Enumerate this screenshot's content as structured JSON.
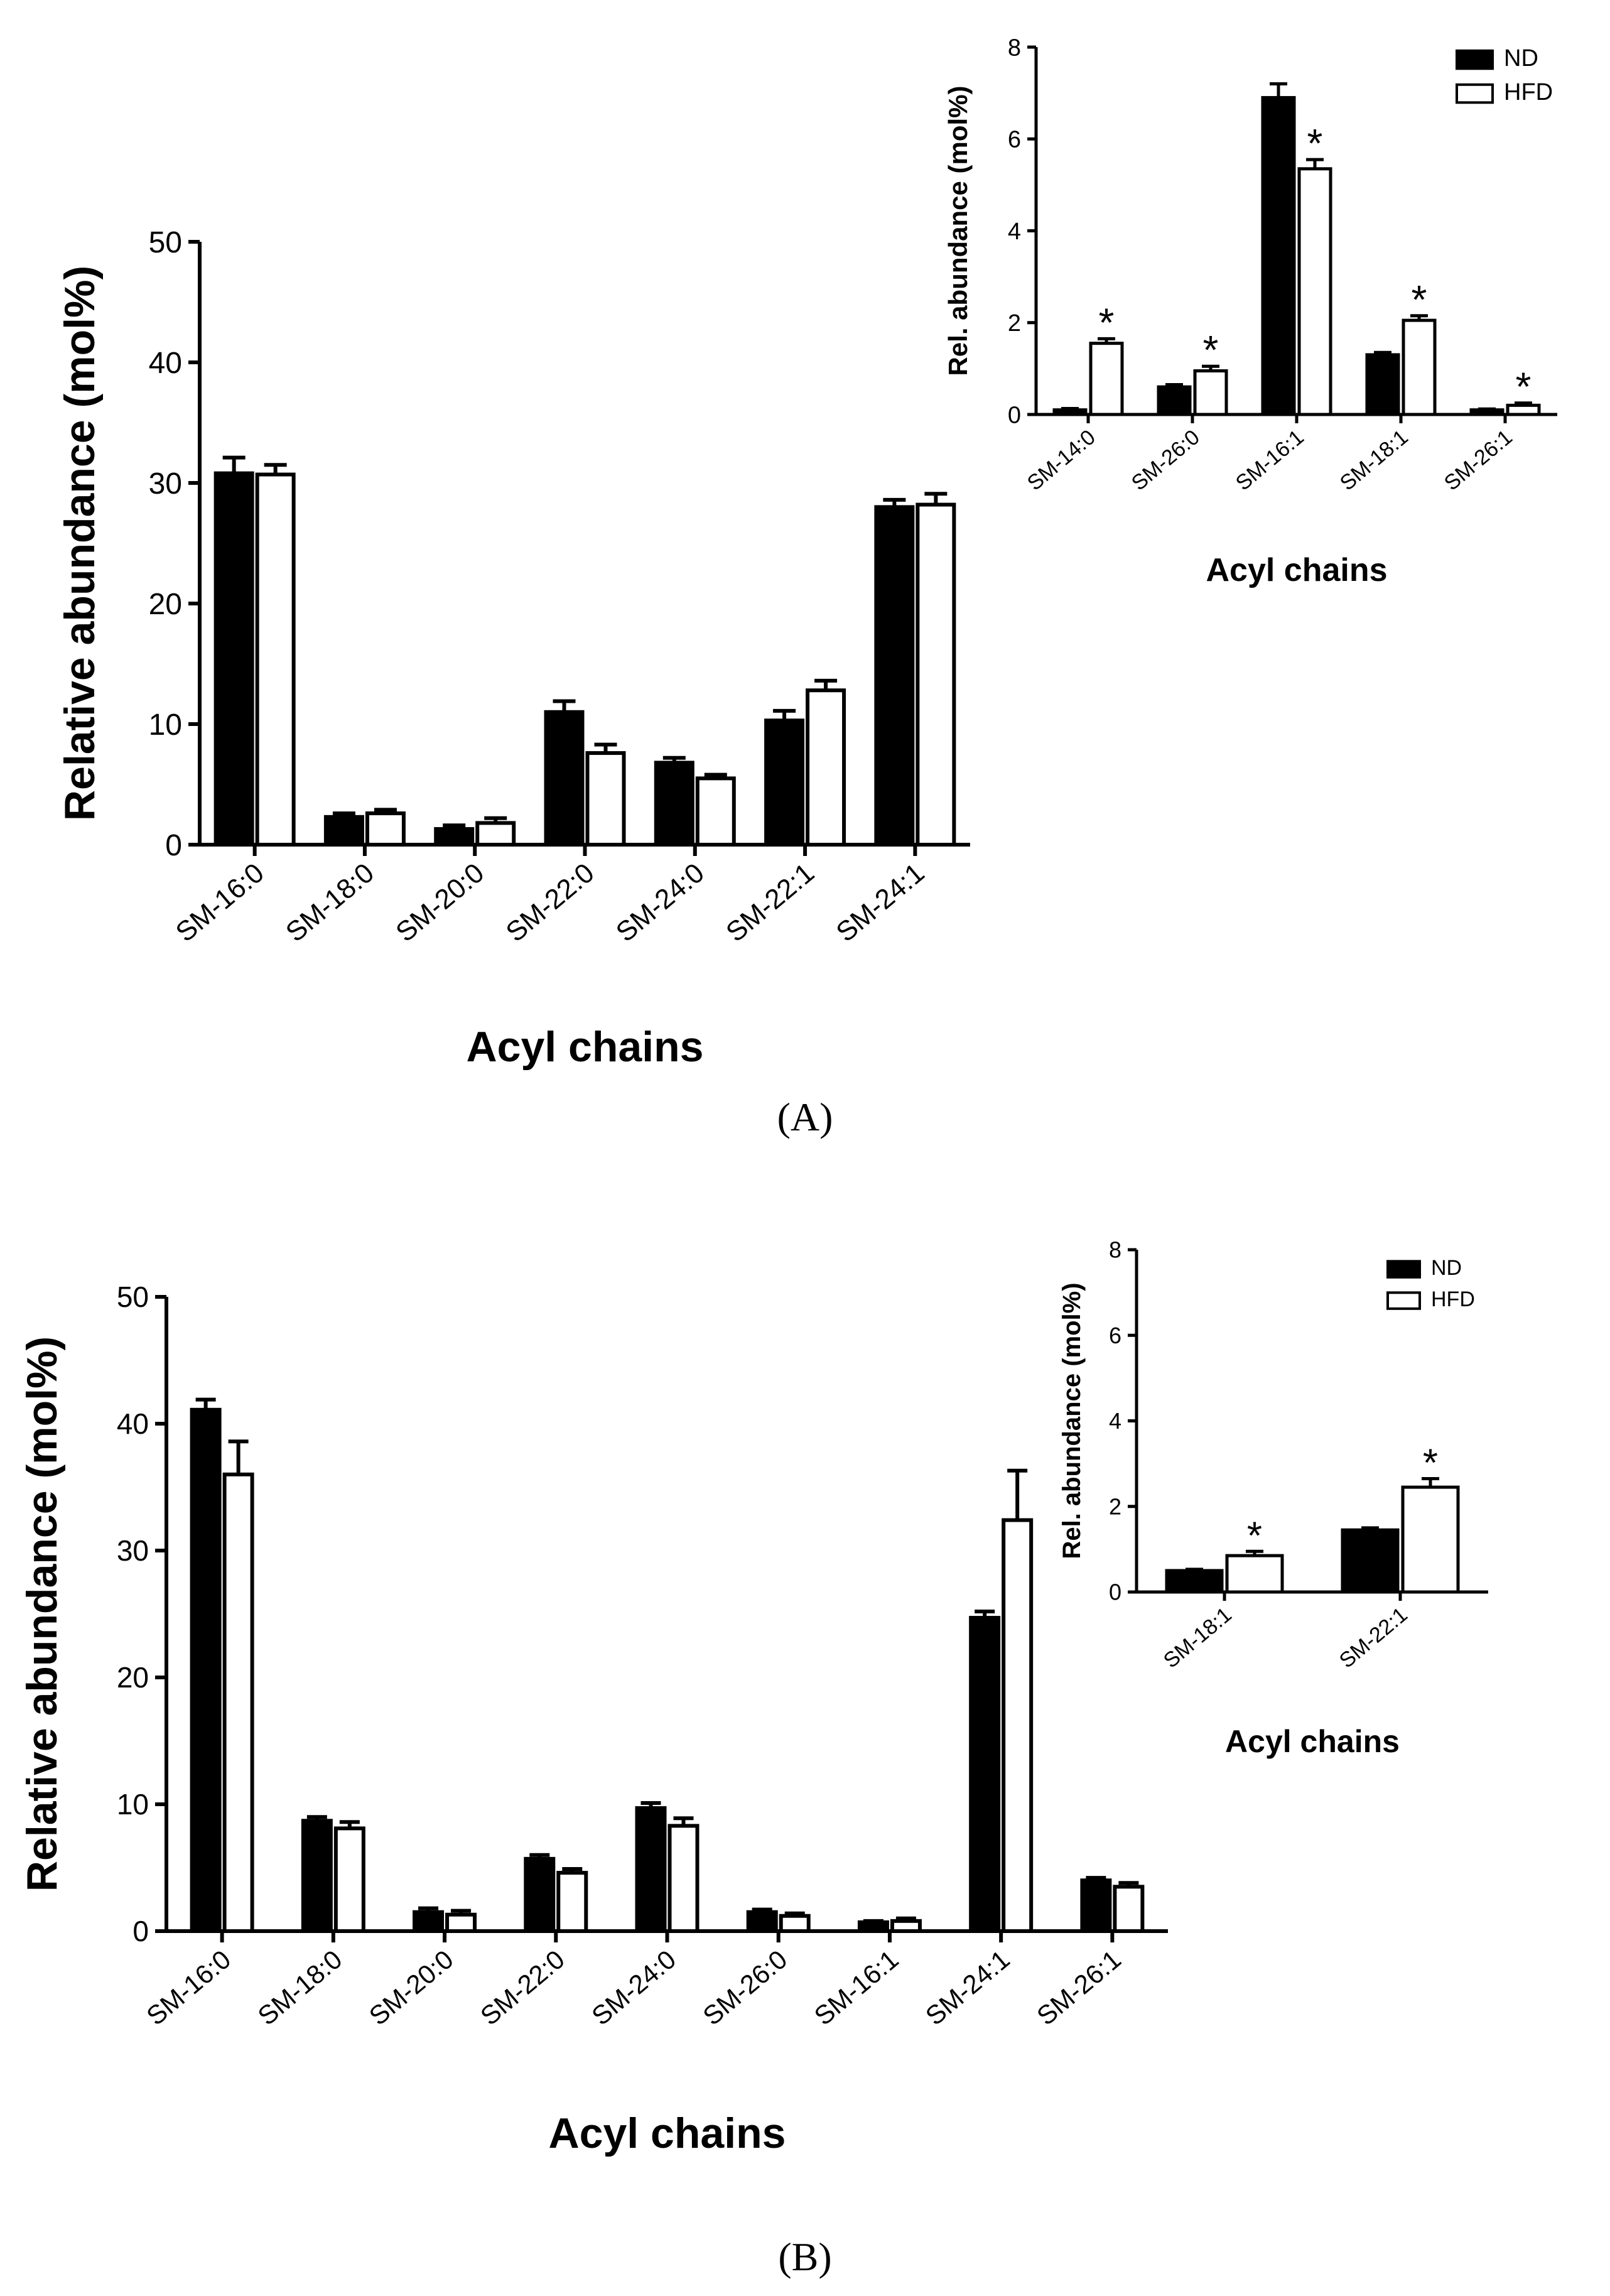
{
  "colors": {
    "nd_fill": "#000000",
    "hfd_fill": "#ffffff",
    "axis": "#000000"
  },
  "figure": {
    "panel_a_label": "(A)",
    "panel_b_label": "(B)"
  },
  "legend": {
    "nd": "ND",
    "hfd": "HFD"
  },
  "chart_data": [
    {
      "id": "A-main",
      "type": "bar",
      "ylabel": "Relative abundance (mol%)",
      "xlabel": "Acyl chains",
      "ylim": [
        0,
        50
      ],
      "yticks": [
        0,
        10,
        20,
        30,
        40,
        50
      ],
      "categories": [
        "SM-16:0",
        "SM-18:0",
        "SM-20:0",
        "SM-22:0",
        "SM-24:0",
        "SM-22:1",
        "SM-24:1"
      ],
      "series": [
        {
          "name": "ND",
          "values": [
            30.8,
            2.3,
            1.3,
            11.0,
            6.8,
            10.3,
            28.0
          ],
          "errors": [
            1.3,
            0.3,
            0.3,
            0.9,
            0.4,
            0.8,
            0.6
          ]
        },
        {
          "name": "HFD",
          "values": [
            30.7,
            2.6,
            1.8,
            7.6,
            5.5,
            12.8,
            28.2
          ],
          "errors": [
            0.8,
            0.3,
            0.4,
            0.7,
            0.3,
            0.8,
            0.9
          ]
        }
      ],
      "significance": [
        "",
        "",
        "",
        "",
        "",
        "",
        ""
      ]
    },
    {
      "id": "A-inset",
      "type": "bar",
      "ylabel": "Rel. abundance (mol%)",
      "xlabel": "Acyl chains",
      "ylim": [
        0,
        8
      ],
      "yticks": [
        0,
        2,
        4,
        6,
        8
      ],
      "categories": [
        "SM-14:0",
        "SM-26:0",
        "SM-16:1",
        "SM-18:1",
        "SM-26:1"
      ],
      "series": [
        {
          "name": "ND",
          "values": [
            0.1,
            0.6,
            6.9,
            1.3,
            0.1
          ],
          "errors": [
            0.03,
            0.05,
            0.3,
            0.05,
            0.02
          ]
        },
        {
          "name": "HFD",
          "values": [
            1.55,
            0.95,
            5.35,
            2.05,
            0.2
          ],
          "errors": [
            0.1,
            0.1,
            0.2,
            0.1,
            0.05
          ]
        }
      ],
      "significance": [
        "*",
        "*",
        "*",
        "*",
        "*"
      ],
      "legend": [
        "ND",
        "HFD"
      ]
    },
    {
      "id": "B-main",
      "type": "bar",
      "ylabel": "Relative abundance (mol%)",
      "xlabel": "Acyl chains",
      "ylim": [
        0,
        50
      ],
      "yticks": [
        0,
        10,
        20,
        30,
        40,
        50
      ],
      "categories": [
        "SM-16:0",
        "SM-18:0",
        "SM-20:0",
        "SM-22:0",
        "SM-24:0",
        "SM-26:0",
        "SM-16:1",
        "SM-24:1",
        "SM-26:1"
      ],
      "series": [
        {
          "name": "ND",
          "values": [
            41.1,
            8.7,
            1.5,
            5.7,
            9.7,
            1.5,
            0.7,
            24.7,
            4.0
          ],
          "errors": [
            0.8,
            0.3,
            0.3,
            0.3,
            0.4,
            0.2,
            0.1,
            0.5,
            0.2
          ]
        },
        {
          "name": "HFD",
          "values": [
            36.0,
            8.1,
            1.3,
            4.6,
            8.3,
            1.2,
            0.8,
            32.4,
            3.5
          ],
          "errors": [
            2.6,
            0.5,
            0.3,
            0.3,
            0.6,
            0.2,
            0.2,
            3.9,
            0.3
          ]
        }
      ],
      "significance": [
        "",
        "",
        "",
        "",
        "",
        "",
        "",
        "",
        ""
      ]
    },
    {
      "id": "B-inset",
      "type": "bar",
      "ylabel": "Rel. abundance (mol%)",
      "xlabel": "Acyl chains",
      "ylim": [
        0,
        8
      ],
      "yticks": [
        0,
        2,
        4,
        6,
        8
      ],
      "categories": [
        "SM-18:1",
        "SM-22:1"
      ],
      "series": [
        {
          "name": "ND",
          "values": [
            0.5,
            1.45
          ],
          "errors": [
            0.03,
            0.05
          ]
        },
        {
          "name": "HFD",
          "values": [
            0.85,
            2.45
          ],
          "errors": [
            0.1,
            0.2
          ]
        }
      ],
      "significance": [
        "*",
        "*"
      ],
      "legend": [
        "ND",
        "HFD"
      ]
    }
  ]
}
